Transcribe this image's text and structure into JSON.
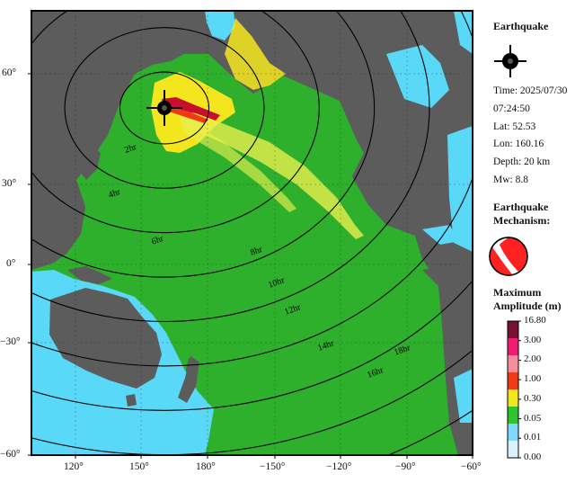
{
  "earthquake": {
    "heading": "Earthquake",
    "time_date": "Time: 2025/07/30",
    "time_clock": "07:24:50",
    "lat": "Lat: 52.53",
    "lon": "Lon: 160.16",
    "depth": "Depth: 20 km",
    "mw": "Mw: 8.8"
  },
  "mechanism": {
    "heading_line1": "Earthquake",
    "heading_line2": "Mechanism:"
  },
  "amplitude": {
    "heading_line1": "Maximum",
    "heading_line2": "Amplitude (m)",
    "levels": [
      "16.80",
      "3.00",
      "2.00",
      "1.00",
      "0.30",
      "0.05",
      "0.01",
      "0.00"
    ],
    "colors": [
      "#7a1030",
      "#f21a72",
      "#f58e9a",
      "#f03a16",
      "#f4e61e",
      "#2ec42e",
      "#7fd8ff",
      "#d9f3fd"
    ]
  },
  "map": {
    "lat_labels": [
      "60°",
      "30°",
      "0°",
      "−30°",
      "−60°"
    ],
    "lon_labels": [
      "120°",
      "150°",
      "180°",
      "−150°",
      "−120°",
      "−90°",
      "−60°"
    ],
    "epicenter": {
      "lat": 52.53,
      "lon": 160.16
    },
    "extent": {
      "lon_min": 105,
      "lon_max": 300,
      "lat_min": -60,
      "lat_max": 70
    },
    "contours": [
      {
        "label": "2hr",
        "hours": 2
      },
      {
        "label": "4hr",
        "hours": 4
      },
      {
        "label": "6hr",
        "hours": 6
      },
      {
        "label": "8hr",
        "hours": 8
      },
      {
        "label": "10hr",
        "hours": 10
      },
      {
        "label": "12hr",
        "hours": 12
      },
      {
        "label": "14hr",
        "hours": 14
      },
      {
        "label": "16hr",
        "hours": 16
      },
      {
        "label": "18hr",
        "hours": 18
      }
    ],
    "colors": {
      "land": "#5c5c5c",
      "ocean_deep": "#2fb02c",
      "ocean_shallow": "#59d8f7",
      "yellow": "#f4e61e",
      "beam": "#d4f062"
    }
  }
}
